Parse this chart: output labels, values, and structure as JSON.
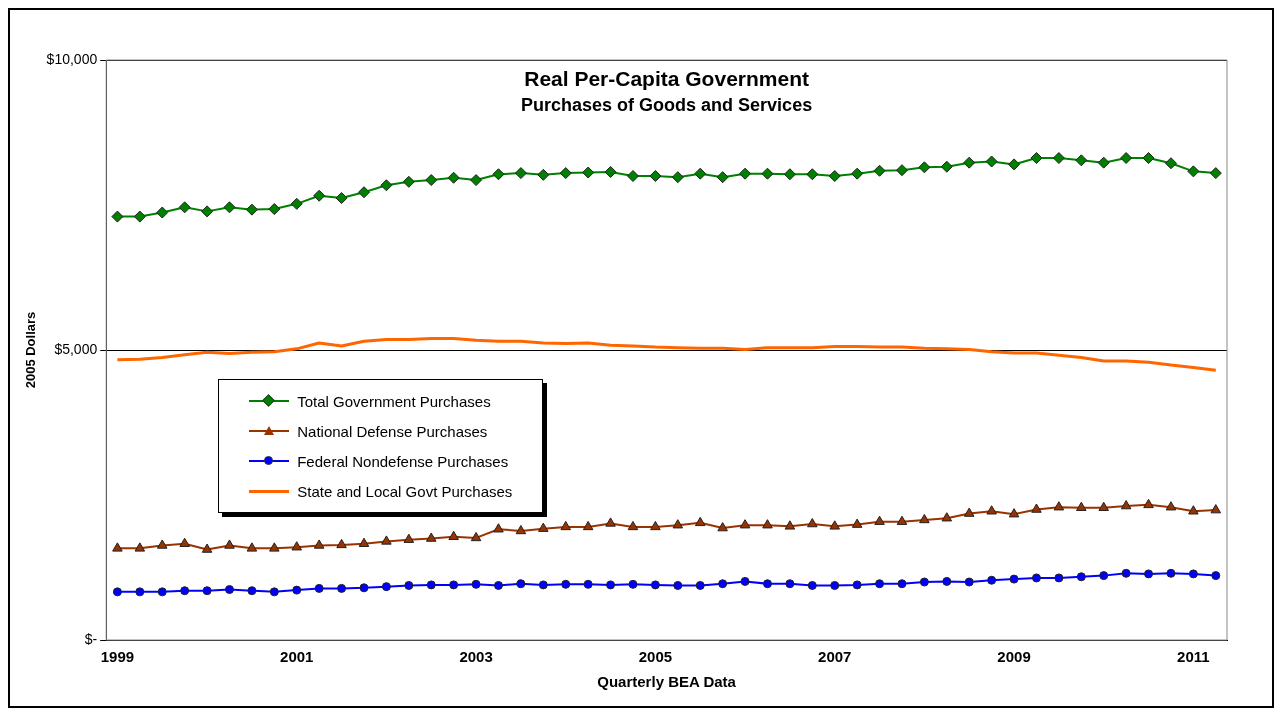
{
  "chart_data": {
    "type": "line",
    "title": "Real Per-Capita Government",
    "subtitle": "Purchases of Goods and Services",
    "xlabel": "Quarterly BEA Data",
    "ylabel": "2005 Dollars",
    "categories": [
      "1999",
      null,
      null,
      null,
      null,
      null,
      null,
      null,
      "2001",
      null,
      null,
      null,
      null,
      null,
      null,
      null,
      "2003",
      null,
      null,
      null,
      null,
      null,
      null,
      null,
      "2005",
      null,
      null,
      null,
      null,
      null,
      null,
      null,
      "2007",
      null,
      null,
      null,
      null,
      null,
      null,
      null,
      "2009",
      null,
      null,
      null,
      null,
      null,
      null,
      null,
      "2011",
      null
    ],
    "ylim": [
      0,
      10000
    ],
    "yticks": [
      {
        "value": 0,
        "label": "$-"
      },
      {
        "value": 5000,
        "label": "$5,000"
      },
      {
        "value": 10000,
        "label": "$10,000"
      }
    ],
    "grid": "y",
    "legend": "left",
    "series": [
      {
        "name": "Total Government Purchases",
        "color": "#008000",
        "marker": "diamond",
        "values": [
          7300,
          7300,
          7370,
          7460,
          7390,
          7460,
          7420,
          7430,
          7520,
          7660,
          7620,
          7720,
          7840,
          7900,
          7930,
          7970,
          7930,
          8030,
          8050,
          8020,
          8050,
          8060,
          8070,
          8000,
          8000,
          7980,
          8040,
          7980,
          8040,
          8040,
          8030,
          8030,
          8000,
          8040,
          8090,
          8100,
          8150,
          8160,
          8230,
          8250,
          8200,
          8310,
          8310,
          8270,
          8230,
          8310,
          8310,
          8220,
          8080,
          8050
        ]
      },
      {
        "name": "National Defense Purchases",
        "color": "#993300",
        "marker": "triangle",
        "values": [
          1580,
          1580,
          1630,
          1660,
          1560,
          1630,
          1580,
          1580,
          1600,
          1630,
          1640,
          1660,
          1700,
          1730,
          1750,
          1780,
          1760,
          1910,
          1880,
          1920,
          1950,
          1950,
          2010,
          1950,
          1950,
          1980,
          2020,
          1930,
          1980,
          1980,
          1960,
          2000,
          1960,
          1990,
          2040,
          2040,
          2070,
          2100,
          2180,
          2220,
          2170,
          2250,
          2290,
          2280,
          2280,
          2310,
          2330,
          2290,
          2220,
          2240
        ]
      },
      {
        "name": "Federal Nondefense Purchases",
        "color": "#0000ff",
        "marker": "circle",
        "values": [
          830,
          830,
          830,
          850,
          850,
          870,
          850,
          830,
          860,
          890,
          890,
          900,
          920,
          940,
          950,
          950,
          960,
          940,
          970,
          950,
          960,
          960,
          950,
          960,
          950,
          940,
          940,
          970,
          1010,
          970,
          970,
          940,
          940,
          950,
          970,
          970,
          1000,
          1010,
          1000,
          1030,
          1050,
          1070,
          1070,
          1090,
          1110,
          1150,
          1140,
          1150,
          1140,
          1110
        ]
      },
      {
        "name": "State and Local Govt Purchases",
        "color": "#ff6600",
        "marker": "none",
        "values": [
          4830,
          4840,
          4870,
          4920,
          4960,
          4940,
          4960,
          4970,
          5020,
          5120,
          5070,
          5150,
          5180,
          5180,
          5200,
          5200,
          5170,
          5150,
          5150,
          5120,
          5110,
          5120,
          5080,
          5070,
          5050,
          5040,
          5030,
          5030,
          5010,
          5040,
          5040,
          5040,
          5060,
          5060,
          5050,
          5050,
          5030,
          5020,
          5010,
          4970,
          4950,
          4950,
          4910,
          4870,
          4810,
          4810,
          4790,
          4740,
          4700,
          4650
        ]
      }
    ]
  }
}
